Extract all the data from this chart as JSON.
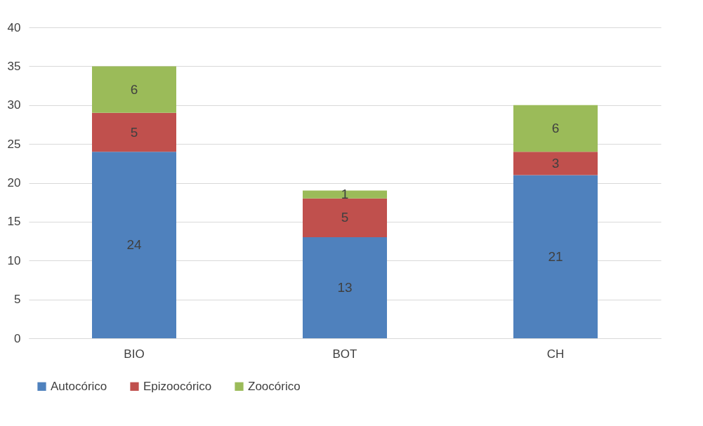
{
  "chart_data": {
    "type": "bar",
    "stacked": true,
    "categories": [
      "BIO",
      "BOT",
      "CH"
    ],
    "series": [
      {
        "name": "Autocórico",
        "color": "#4f81bd",
        "values": [
          24,
          13,
          21
        ]
      },
      {
        "name": "Epizoocórico",
        "color": "#c0504d",
        "values": [
          5,
          5,
          3
        ]
      },
      {
        "name": "Zoocórico",
        "color": "#9bbb59",
        "values": [
          6,
          1,
          6
        ]
      }
    ],
    "ylim": [
      0,
      40
    ],
    "yticks": [
      0,
      5,
      10,
      15,
      20,
      25,
      30,
      35,
      40
    ],
    "grid": "y",
    "legend": "bottom",
    "data_labels": true
  }
}
